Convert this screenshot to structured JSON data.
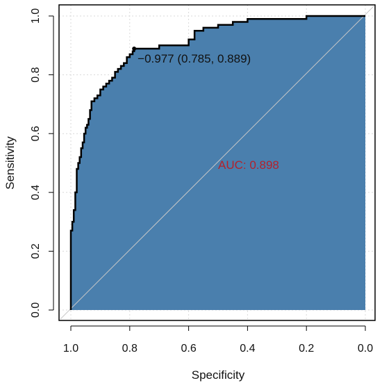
{
  "chart_data": {
    "type": "line",
    "title": "",
    "xlabel": "Specificity",
    "ylabel": "Sensitivity",
    "x_reversed": true,
    "xlim": [
      1.0,
      0.0
    ],
    "ylim": [
      0.0,
      1.0
    ],
    "x_ticks": [
      "1.0",
      "0.8",
      "0.6",
      "0.4",
      "0.2",
      "0.0"
    ],
    "y_ticks": [
      "0.0",
      "0.2",
      "0.4",
      "0.6",
      "0.8",
      "1.0"
    ],
    "grid": true,
    "fill_color": "#4a7fad",
    "curve_color": "#000000",
    "diagonal_color": "#c8c8c8",
    "auc_color": "#b2222c",
    "auc_label": "AUC: 0.898",
    "threshold_label": "−0.977 (0.785, 0.889)",
    "threshold_point": {
      "specificity": 0.785,
      "sensitivity": 0.889
    },
    "series": [
      {
        "specificity": [
          1.0,
          1.0,
          0.995,
          0.995,
          0.99,
          0.99,
          0.985,
          0.985,
          0.98,
          0.98,
          0.975,
          0.975,
          0.97,
          0.97,
          0.965,
          0.965,
          0.96,
          0.96,
          0.955,
          0.955,
          0.95,
          0.95,
          0.945,
          0.945,
          0.94,
          0.94,
          0.935,
          0.935,
          0.93,
          0.93,
          0.92,
          0.92,
          0.91,
          0.91,
          0.9,
          0.9,
          0.89,
          0.89,
          0.88,
          0.88,
          0.87,
          0.87,
          0.86,
          0.86,
          0.85,
          0.85,
          0.84,
          0.84,
          0.83,
          0.83,
          0.82,
          0.82,
          0.81,
          0.81,
          0.8,
          0.8,
          0.79,
          0.79,
          0.785,
          0.785,
          0.7,
          0.7,
          0.6,
          0.6,
          0.58,
          0.58,
          0.55,
          0.55,
          0.5,
          0.5,
          0.45,
          0.45,
          0.4,
          0.4,
          0.2,
          0.2,
          0.1,
          0.1,
          0.0
        ],
        "sensitivity": [
          0.0,
          0.27,
          0.27,
          0.3,
          0.3,
          0.34,
          0.34,
          0.4,
          0.4,
          0.48,
          0.48,
          0.5,
          0.5,
          0.52,
          0.52,
          0.55,
          0.55,
          0.57,
          0.57,
          0.6,
          0.6,
          0.62,
          0.62,
          0.63,
          0.63,
          0.65,
          0.65,
          0.68,
          0.68,
          0.71,
          0.71,
          0.72,
          0.72,
          0.73,
          0.73,
          0.75,
          0.75,
          0.76,
          0.76,
          0.77,
          0.77,
          0.78,
          0.78,
          0.79,
          0.79,
          0.81,
          0.81,
          0.82,
          0.82,
          0.83,
          0.83,
          0.84,
          0.84,
          0.86,
          0.86,
          0.87,
          0.87,
          0.88,
          0.88,
          0.889,
          0.889,
          0.9,
          0.9,
          0.92,
          0.92,
          0.95,
          0.95,
          0.96,
          0.96,
          0.97,
          0.97,
          0.98,
          0.98,
          0.99,
          0.99,
          1.0,
          1.0,
          1.0,
          1.0
        ]
      }
    ]
  }
}
